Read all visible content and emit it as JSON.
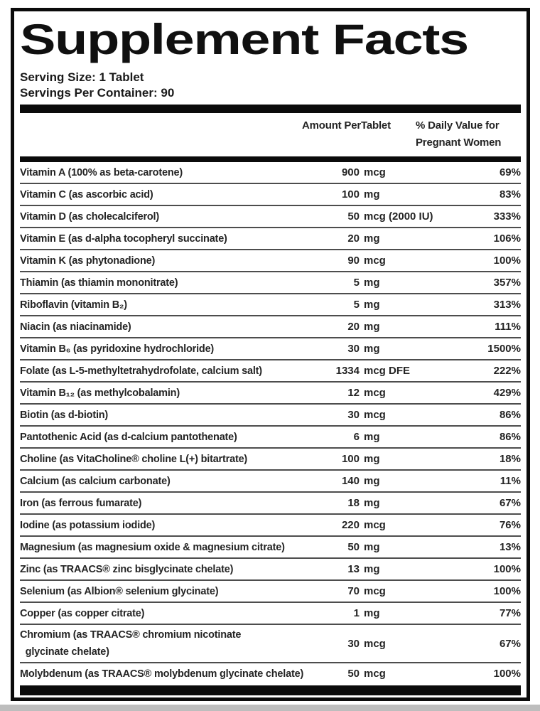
{
  "panel": {
    "title": "Supplement Facts",
    "serving_size": "Serving Size: 1 Tablet",
    "servings_per_container": "Servings Per Container: 90",
    "columns": {
      "amount_line1": "Amount Per",
      "amount_line2": "Tablet",
      "dv_line1": "% Daily Value for",
      "dv_line2": "Pregnant Women"
    },
    "rows": [
      {
        "name": "Vitamin A (100% as beta-carotene)",
        "amount_num": "900",
        "amount_unit": "mcg",
        "dv": "69%"
      },
      {
        "name": "Vitamin C (as ascorbic acid)",
        "amount_num": "100",
        "amount_unit": "mg",
        "dv": "83%"
      },
      {
        "name": "Vitamin D (as cholecalciferol)",
        "amount_num": "50",
        "amount_unit": "mcg (2000 IU)",
        "dv": "333%"
      },
      {
        "name": "Vitamin E (as d-alpha tocopheryl succinate)",
        "amount_num": "20",
        "amount_unit": "mg",
        "dv": "106%"
      },
      {
        "name": "Vitamin K (as phytonadione)",
        "amount_num": "90",
        "amount_unit": "mcg",
        "dv": "100%"
      },
      {
        "name": "Thiamin (as thiamin mononitrate)",
        "amount_num": "5",
        "amount_unit": "mg",
        "dv": "357%"
      },
      {
        "name": "Riboflavin (vitamin B₂)",
        "amount_num": "5",
        "amount_unit": "mg",
        "dv": "313%"
      },
      {
        "name": "Niacin (as niacinamide)",
        "amount_num": "20",
        "amount_unit": "mg",
        "dv": "111%"
      },
      {
        "name": "Vitamin B₆ (as pyridoxine hydrochloride)",
        "amount_num": "30",
        "amount_unit": "mg",
        "dv": "1500%"
      },
      {
        "name": "Folate (as L-5-methyltetrahydrofolate, calcium salt)",
        "amount_num": "1334",
        "amount_unit": "mcg DFE",
        "dv": "222%"
      },
      {
        "name": "Vitamin B₁₂ (as methylcobalamin)",
        "amount_num": "12",
        "amount_unit": "mcg",
        "dv": "429%"
      },
      {
        "name": "Biotin (as d-biotin)",
        "amount_num": "30",
        "amount_unit": "mcg",
        "dv": "86%"
      },
      {
        "name": "Pantothenic Acid (as d-calcium pantothenate)",
        "amount_num": "6",
        "amount_unit": "mg",
        "dv": "86%"
      },
      {
        "name": "Choline (as VitaCholine® choline L(+) bitartrate)",
        "amount_num": "100",
        "amount_unit": "mg",
        "dv": "18%"
      },
      {
        "name": "Calcium (as calcium carbonate)",
        "amount_num": "140",
        "amount_unit": "mg",
        "dv": "11%"
      },
      {
        "name": "Iron (as ferrous fumarate)",
        "amount_num": "18",
        "amount_unit": "mg",
        "dv": "67%"
      },
      {
        "name": "Iodine (as potassium iodide)",
        "amount_num": "220",
        "amount_unit": "mcg",
        "dv": "76%"
      },
      {
        "name": "Magnesium (as magnesium oxide & magnesium citrate)",
        "amount_num": "50",
        "amount_unit": "mg",
        "dv": "13%"
      },
      {
        "name": "Zinc (as TRAACS® zinc bisglycinate chelate)",
        "amount_num": "13",
        "amount_unit": "mg",
        "dv": "100%"
      },
      {
        "name": "Selenium (as Albion® selenium glycinate)",
        "amount_num": "70",
        "amount_unit": "mcg",
        "dv": "100%"
      },
      {
        "name": "Copper (as copper citrate)",
        "amount_num": "1",
        "amount_unit": "mg",
        "dv": "77%"
      },
      {
        "name": "Chromium (as TRAACS® chromium nicotinate\n  glycinate chelate)",
        "amount_num": "30",
        "amount_unit": "mcg",
        "dv": "67%"
      },
      {
        "name": "Molybdenum (as TRAACS® molybdenum glycinate chelate)",
        "amount_num": "50",
        "amount_unit": "mcg",
        "dv": "100%"
      }
    ],
    "colors": {
      "border": "#0b0b0b",
      "bar": "#0b0b0b",
      "text": "#1d1d1d",
      "separator": "#4d4d4d",
      "bottom_strip": "#bdbdbd"
    }
  }
}
